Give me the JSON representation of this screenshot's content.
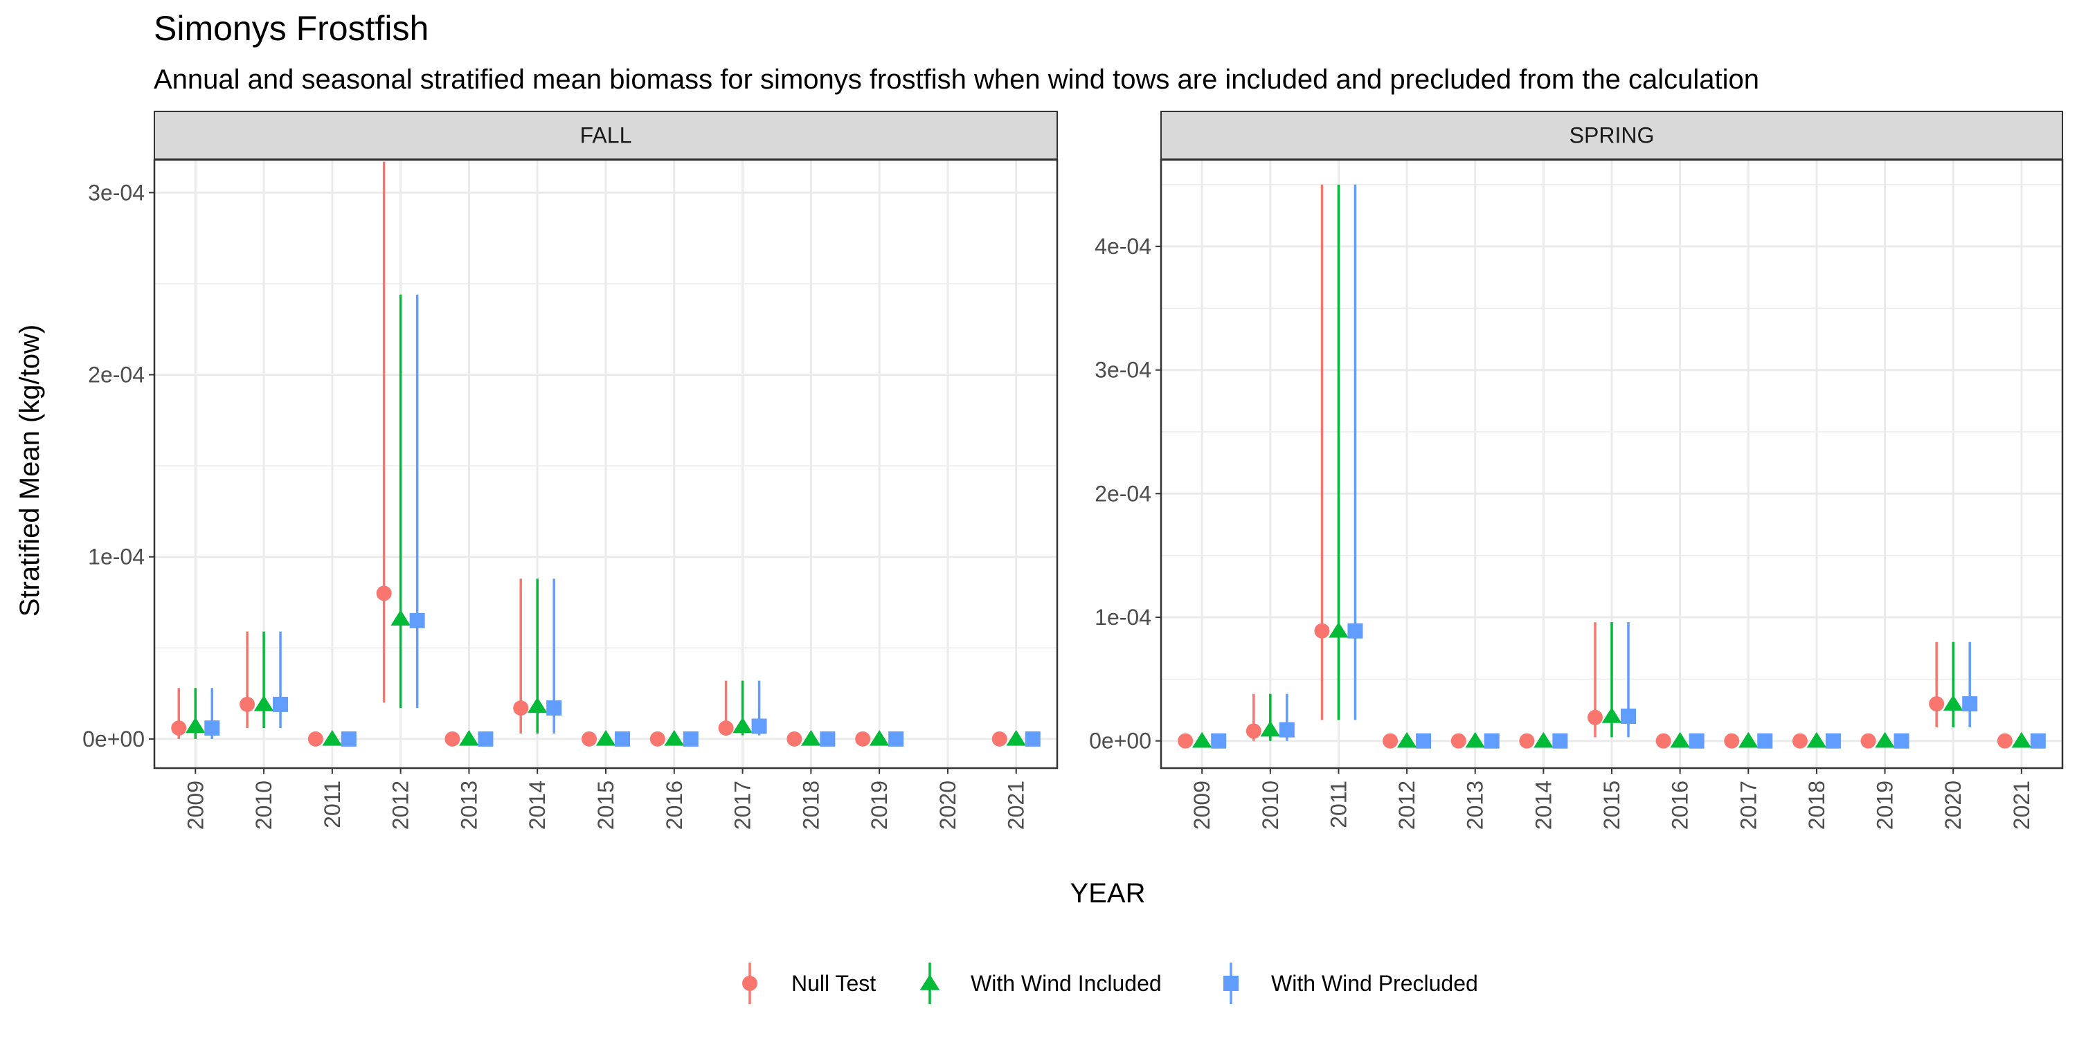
{
  "title": "Simonys Frostfish",
  "subtitle": "Annual and seasonal stratified mean biomass for simonys frostfish when wind tows are included and precluded from the calculation",
  "colors": {
    "Null Test": "#F8766D",
    "With Wind Included": "#00BA38",
    "With Wind Precluded": "#619CFF",
    "strip_fill": "#D9D9D9",
    "panel_border": "#333333",
    "grid": "#EBEBEB"
  },
  "chart_data": {
    "type": "scatter",
    "xlabel": "YEAR",
    "ylabel": "Stratified Mean (kg/tow)",
    "categories": [
      "2009",
      "2010",
      "2011",
      "2012",
      "2013",
      "2014",
      "2015",
      "2016",
      "2017",
      "2018",
      "2019",
      "2020",
      "2021"
    ],
    "legend": {
      "position": "bottom",
      "entries": [
        {
          "name": "Null Test",
          "shape": "circle"
        },
        {
          "name": "With Wind Included",
          "shape": "triangle"
        },
        {
          "name": "With Wind Precluded",
          "shape": "square"
        }
      ]
    },
    "grid": true,
    "panels": [
      {
        "strip": "FALL",
        "ylim": [
          -1.6e-05,
          0.000318
        ],
        "yticks": [
          0,
          0.0001,
          0.0002,
          0.0003
        ],
        "ytick_labels": [
          "0e+00",
          "1e-04",
          "2e-04",
          "3e-04"
        ],
        "series": [
          {
            "name": "Null Test",
            "points": [
              {
                "x": "2009",
                "y": 6e-06,
                "lo": 0.0,
                "hi": 2.8e-05
              },
              {
                "x": "2010",
                "y": 1.9e-05,
                "lo": 6e-06,
                "hi": 5.9e-05
              },
              {
                "x": "2011",
                "y": 0.0,
                "lo": 0.0,
                "hi": 0.0
              },
              {
                "x": "2012",
                "y": 8e-05,
                "lo": 2e-05,
                "hi": 0.000317
              },
              {
                "x": "2013",
                "y": 0.0,
                "lo": 0.0,
                "hi": 0.0
              },
              {
                "x": "2014",
                "y": 1.7e-05,
                "lo": 3e-06,
                "hi": 8.8e-05
              },
              {
                "x": "2015",
                "y": 0.0,
                "lo": 0.0,
                "hi": 0.0
              },
              {
                "x": "2016",
                "y": 0.0,
                "lo": 0.0,
                "hi": 0.0
              },
              {
                "x": "2017",
                "y": 6e-06,
                "lo": 2e-06,
                "hi": 3.2e-05
              },
              {
                "x": "2018",
                "y": 0.0,
                "lo": 0.0,
                "hi": 0.0
              },
              {
                "x": "2019",
                "y": 0.0,
                "lo": 0.0,
                "hi": 0.0
              },
              {
                "x": "2021",
                "y": 0.0,
                "lo": 0.0,
                "hi": 0.0
              }
            ]
          },
          {
            "name": "With Wind Included",
            "points": [
              {
                "x": "2009",
                "y": 7e-06,
                "lo": 0.0,
                "hi": 2.8e-05
              },
              {
                "x": "2010",
                "y": 1.9e-05,
                "lo": 6e-06,
                "hi": 5.9e-05
              },
              {
                "x": "2011",
                "y": 0.0,
                "lo": 0.0,
                "hi": 0.0
              },
              {
                "x": "2012",
                "y": 6.6e-05,
                "lo": 1.7e-05,
                "hi": 0.000244
              },
              {
                "x": "2013",
                "y": 0.0,
                "lo": 0.0,
                "hi": 0.0
              },
              {
                "x": "2014",
                "y": 1.8e-05,
                "lo": 3e-06,
                "hi": 8.8e-05
              },
              {
                "x": "2015",
                "y": 0.0,
                "lo": 0.0,
                "hi": 0.0
              },
              {
                "x": "2016",
                "y": 0.0,
                "lo": 0.0,
                "hi": 0.0
              },
              {
                "x": "2017",
                "y": 7e-06,
                "lo": 2e-06,
                "hi": 3.2e-05
              },
              {
                "x": "2018",
                "y": 0.0,
                "lo": 0.0,
                "hi": 0.0
              },
              {
                "x": "2019",
                "y": 0.0,
                "lo": 0.0,
                "hi": 0.0
              },
              {
                "x": "2021",
                "y": 0.0,
                "lo": 0.0,
                "hi": 0.0
              }
            ]
          },
          {
            "name": "With Wind Precluded",
            "points": [
              {
                "x": "2009",
                "y": 6e-06,
                "lo": 0.0,
                "hi": 2.8e-05
              },
              {
                "x": "2010",
                "y": 1.9e-05,
                "lo": 6e-06,
                "hi": 5.9e-05
              },
              {
                "x": "2011",
                "y": 0.0,
                "lo": 0.0,
                "hi": 0.0
              },
              {
                "x": "2012",
                "y": 6.5e-05,
                "lo": 1.7e-05,
                "hi": 0.000244
              },
              {
                "x": "2013",
                "y": 0.0,
                "lo": 0.0,
                "hi": 0.0
              },
              {
                "x": "2014",
                "y": 1.7e-05,
                "lo": 3e-06,
                "hi": 8.8e-05
              },
              {
                "x": "2015",
                "y": 0.0,
                "lo": 0.0,
                "hi": 0.0
              },
              {
                "x": "2016",
                "y": 0.0,
                "lo": 0.0,
                "hi": 0.0
              },
              {
                "x": "2017",
                "y": 7e-06,
                "lo": 2e-06,
                "hi": 3.2e-05
              },
              {
                "x": "2018",
                "y": 0.0,
                "lo": 0.0,
                "hi": 0.0
              },
              {
                "x": "2019",
                "y": 0.0,
                "lo": 0.0,
                "hi": 0.0
              },
              {
                "x": "2021",
                "y": 0.0,
                "lo": 0.0,
                "hi": 0.0
              }
            ]
          }
        ]
      },
      {
        "strip": "SPRING",
        "ylim": [
          -2.2e-05,
          0.00047
        ],
        "yticks": [
          0,
          0.0001,
          0.0002,
          0.0003,
          0.0004
        ],
        "ytick_labels": [
          "0e+00",
          "1e-04",
          "2e-04",
          "3e-04",
          "4e-04"
        ],
        "series": [
          {
            "name": "Null Test",
            "points": [
              {
                "x": "2009",
                "y": 0.0,
                "lo": 0.0,
                "hi": 0.0
              },
              {
                "x": "2010",
                "y": 8e-06,
                "lo": 0.0,
                "hi": 3.8e-05
              },
              {
                "x": "2011",
                "y": 8.9e-05,
                "lo": 1.7e-05,
                "hi": 0.00045
              },
              {
                "x": "2012",
                "y": 0.0,
                "lo": 0.0,
                "hi": 0.0
              },
              {
                "x": "2013",
                "y": 0.0,
                "lo": 0.0,
                "hi": 0.0
              },
              {
                "x": "2014",
                "y": 0.0,
                "lo": 0.0,
                "hi": 0.0
              },
              {
                "x": "2015",
                "y": 1.9e-05,
                "lo": 3e-06,
                "hi": 9.6e-05
              },
              {
                "x": "2016",
                "y": 0.0,
                "lo": 0.0,
                "hi": 0.0
              },
              {
                "x": "2017",
                "y": 0.0,
                "lo": 0.0,
                "hi": 0.0
              },
              {
                "x": "2018",
                "y": 0.0,
                "lo": 0.0,
                "hi": 0.0
              },
              {
                "x": "2019",
                "y": 0.0,
                "lo": 0.0,
                "hi": 0.0
              },
              {
                "x": "2020",
                "y": 3e-05,
                "lo": 1.1e-05,
                "hi": 8e-05
              },
              {
                "x": "2021",
                "y": 0.0,
                "lo": 0.0,
                "hi": 0.0
              }
            ]
          },
          {
            "name": "With Wind Included",
            "points": [
              {
                "x": "2009",
                "y": 0.0,
                "lo": 0.0,
                "hi": 0.0
              },
              {
                "x": "2010",
                "y": 9e-06,
                "lo": 0.0,
                "hi": 3.8e-05
              },
              {
                "x": "2011",
                "y": 8.9e-05,
                "lo": 1.7e-05,
                "hi": 0.00045
              },
              {
                "x": "2012",
                "y": 0.0,
                "lo": 0.0,
                "hi": 0.0
              },
              {
                "x": "2013",
                "y": 0.0,
                "lo": 0.0,
                "hi": 0.0
              },
              {
                "x": "2014",
                "y": 0.0,
                "lo": 0.0,
                "hi": 0.0
              },
              {
                "x": "2015",
                "y": 2e-05,
                "lo": 3e-06,
                "hi": 9.6e-05
              },
              {
                "x": "2016",
                "y": 0.0,
                "lo": 0.0,
                "hi": 0.0
              },
              {
                "x": "2017",
                "y": 0.0,
                "lo": 0.0,
                "hi": 0.0
              },
              {
                "x": "2018",
                "y": 0.0,
                "lo": 0.0,
                "hi": 0.0
              },
              {
                "x": "2019",
                "y": 0.0,
                "lo": 0.0,
                "hi": 0.0
              },
              {
                "x": "2020",
                "y": 3e-05,
                "lo": 1.1e-05,
                "hi": 8e-05
              },
              {
                "x": "2021",
                "y": 0.0,
                "lo": 0.0,
                "hi": 0.0
              }
            ]
          },
          {
            "name": "With Wind Precluded",
            "points": [
              {
                "x": "2009",
                "y": 0.0,
                "lo": 0.0,
                "hi": 0.0
              },
              {
                "x": "2010",
                "y": 9e-06,
                "lo": 0.0,
                "hi": 3.8e-05
              },
              {
                "x": "2011",
                "y": 8.9e-05,
                "lo": 1.7e-05,
                "hi": 0.00045
              },
              {
                "x": "2012",
                "y": 0.0,
                "lo": 0.0,
                "hi": 0.0
              },
              {
                "x": "2013",
                "y": 0.0,
                "lo": 0.0,
                "hi": 0.0
              },
              {
                "x": "2014",
                "y": 0.0,
                "lo": 0.0,
                "hi": 0.0
              },
              {
                "x": "2015",
                "y": 2e-05,
                "lo": 3e-06,
                "hi": 9.6e-05
              },
              {
                "x": "2016",
                "y": 0.0,
                "lo": 0.0,
                "hi": 0.0
              },
              {
                "x": "2017",
                "y": 0.0,
                "lo": 0.0,
                "hi": 0.0
              },
              {
                "x": "2018",
                "y": 0.0,
                "lo": 0.0,
                "hi": 0.0
              },
              {
                "x": "2019",
                "y": 0.0,
                "lo": 0.0,
                "hi": 0.0
              },
              {
                "x": "2020",
                "y": 3e-05,
                "lo": 1.1e-05,
                "hi": 8e-05
              },
              {
                "x": "2021",
                "y": 0.0,
                "lo": 0.0,
                "hi": 0.0
              }
            ]
          }
        ]
      }
    ]
  }
}
